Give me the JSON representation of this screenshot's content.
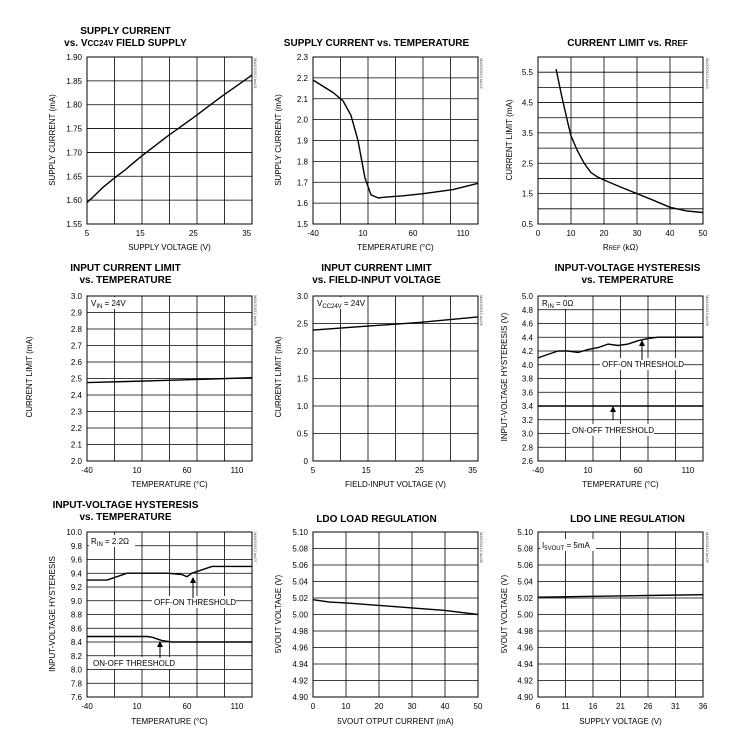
{
  "colors": {
    "line": "#000000",
    "grid": "#000000",
    "background": "#ffffff"
  },
  "chart_data": [
    {
      "type": "line",
      "title_lines": [
        "SUPPLY CURRENT",
        "vs. VCC24V FIELD SUPPLY"
      ],
      "xlabel": "SUPPLY VOLTAGE (V)",
      "ylabel": "SUPPLY CURRENT (mA)",
      "fig_id": "MAX31912 toc01",
      "xlim": [
        5,
        36
      ],
      "ylim": [
        1.55,
        1.9
      ],
      "xticks": [
        "5",
        "15",
        "25",
        "35"
      ],
      "yticks": [
        "1.90",
        "1.85",
        "1.80",
        "1.75",
        "1.70",
        "1.65",
        "1.60",
        "1.55"
      ],
      "grid": true,
      "series": [
        {
          "x": [
            5,
            6,
            8,
            10,
            12,
            15,
            20,
            25,
            30,
            36
          ],
          "y": [
            1.595,
            1.605,
            1.627,
            1.645,
            1.662,
            1.69,
            1.733,
            1.773,
            1.815,
            1.862
          ]
        }
      ],
      "annotations": []
    },
    {
      "type": "line",
      "title_lines": [
        "SUPPLY CURRENT vs. TEMPERATURE"
      ],
      "xlabel": "TEMPERATURE (°C)",
      "ylabel": "SUPPLY CURRENT (mA)",
      "fig_id": "MAX31912 toc02",
      "xlim": [
        -40,
        125
      ],
      "ylim": [
        1.5,
        2.3
      ],
      "xticks": [
        "-40",
        "10",
        "60",
        "110"
      ],
      "yticks": [
        "2.3",
        "2.2",
        "2.1",
        "2.0",
        "1.9",
        "1.8",
        "1.7",
        "1.6",
        "1.5"
      ],
      "grid": true,
      "series": [
        {
          "x": [
            -40,
            -20,
            -10,
            -2,
            5,
            12,
            18,
            25,
            35,
            50,
            70,
            100,
            125
          ],
          "y": [
            2.19,
            2.13,
            2.09,
            2.02,
            1.9,
            1.72,
            1.64,
            1.625,
            1.63,
            1.635,
            1.645,
            1.665,
            1.695
          ]
        }
      ],
      "annotations": []
    },
    {
      "type": "line",
      "title_lines": [
        "CURRENT LIMIT vs. RREF"
      ],
      "xlabel": "RREF (kΩ)",
      "ylabel": "CURRENT LIMIT (mA)",
      "fig_id": "MAX31912 toc03",
      "xlim": [
        0,
        50
      ],
      "ylim": [
        0.5,
        6
      ],
      "xticks": [
        "0",
        "10",
        "20",
        "30",
        "40",
        "50"
      ],
      "yticks": [
        "5.5",
        "4.5",
        "3.5",
        "2.5",
        "1.5",
        "0.5"
      ],
      "grid": true,
      "series": [
        {
          "x": [
            5.5,
            7,
            9,
            10,
            12,
            14,
            16,
            18,
            20,
            25,
            30,
            35,
            40,
            45,
            50
          ],
          "y": [
            5.6,
            4.8,
            3.85,
            3.4,
            2.9,
            2.5,
            2.2,
            2.05,
            1.95,
            1.72,
            1.5,
            1.28,
            1.05,
            0.93,
            0.88
          ]
        }
      ],
      "annotations": []
    },
    {
      "type": "line",
      "title_lines": [
        "INPUT CURRENT LIMIT",
        "vs. TEMPERATURE"
      ],
      "xlabel": "TEMPERATURE (°C)",
      "ylabel": "CURRENT LIMIT (mA)",
      "fig_id": "MAX31912 toc04",
      "xlim": [
        -40,
        125
      ],
      "ylim": [
        2.0,
        3.0
      ],
      "xticks": [
        "-40",
        "10",
        "60",
        "110"
      ],
      "yticks": [
        "3.0",
        "2.9",
        "2.8",
        "2.7",
        "2.6",
        "2.5",
        "2.4",
        "2.3",
        "2.2",
        "2.1",
        "2.0"
      ],
      "grid": true,
      "series": [
        {
          "x": [
            -40,
            0,
            50,
            100,
            125
          ],
          "y": [
            2.475,
            2.482,
            2.49,
            2.5,
            2.505
          ]
        }
      ],
      "annotations": [
        {
          "text": "VIN = 24V",
          "at": "top-left",
          "arrow": null
        }
      ]
    },
    {
      "type": "line",
      "title_lines": [
        "INPUT CURRENT LIMIT",
        "vs. FIELD-INPUT VOLTAGE"
      ],
      "xlabel": "FIELD-INPUT VOLTAGE (V)",
      "ylabel": "CURRENT LIMIT (mA)",
      "fig_id": "MAX31912 toc05",
      "xlim": [
        5,
        36
      ],
      "ylim": [
        0,
        3.0
      ],
      "xticks": [
        "5",
        "15",
        "25",
        "35"
      ],
      "yticks": [
        "3.0",
        "2.5",
        "2.0",
        "1.5",
        "1.0",
        "0.5",
        "0"
      ],
      "grid": true,
      "series": [
        {
          "x": [
            5,
            15,
            25,
            36
          ],
          "y": [
            2.38,
            2.45,
            2.52,
            2.62
          ]
        }
      ],
      "annotations": [
        {
          "text": "VCC24V = 24V",
          "at": "top-left",
          "arrow": null
        }
      ]
    },
    {
      "type": "line",
      "title_lines": [
        "INPUT-VOLTAGE HYSTERESIS",
        "vs. TEMPERATURE"
      ],
      "xlabel": "TEMPERATURE (°C)",
      "ylabel": "INPUT-VOLTAGE HYSTERESIS (V)",
      "fig_id": "MAX31912 toc06",
      "xlim": [
        -40,
        125
      ],
      "ylim": [
        2.6,
        5.0
      ],
      "xticks": [
        "-40",
        "10",
        "60",
        "110"
      ],
      "yticks": [
        "5.0",
        "4.8",
        "4.6",
        "4.4",
        "4.2",
        "4.0",
        "3.8",
        "3.6",
        "3.4",
        "3.2",
        "3.0",
        "2.8",
        "2.6"
      ],
      "grid": true,
      "series": [
        {
          "x": [
            -40,
            -30,
            -20,
            -10,
            0,
            10,
            20,
            30,
            40,
            50,
            60,
            70,
            80,
            100,
            125
          ],
          "y": [
            4.1,
            4.15,
            4.2,
            4.2,
            4.18,
            4.22,
            4.25,
            4.3,
            4.28,
            4.3,
            4.35,
            4.38,
            4.4,
            4.4,
            4.4
          ]
        },
        {
          "x": [
            -40,
            0,
            50,
            100,
            125
          ],
          "y": [
            3.4,
            3.4,
            3.4,
            3.4,
            3.4
          ]
        }
      ],
      "annotations": [
        {
          "text": "RIN = 0Ω",
          "at": "top-left",
          "arrow": null
        },
        {
          "text": "OFF-ON THRESHOLD",
          "at": "upper",
          "arrow": "up"
        },
        {
          "text": "ON-OFF THRESHOLD",
          "at": "middle",
          "arrow": "up"
        }
      ]
    },
    {
      "type": "line",
      "title_lines": [
        "INPUT-VOLTAGE HYSTERESIS",
        "vs. TEMPERATURE"
      ],
      "xlabel": "TEMPERATURE (°C)",
      "ylabel": "INPUT-VOLTAGE HYSTERESIS",
      "fig_id": "MAX31912 toc07",
      "xlim": [
        -40,
        125
      ],
      "ylim": [
        7.6,
        10.0
      ],
      "xticks": [
        "-40",
        "10",
        "60",
        "110"
      ],
      "yticks": [
        "10.0",
        "9.8",
        "9.6",
        "9.4",
        "9.2",
        "9.0",
        "8.8",
        "8.6",
        "8.4",
        "8.2",
        "8.0",
        "7.8",
        "7.6"
      ],
      "grid": true,
      "series": [
        {
          "x": [
            -40,
            -20,
            -10,
            0,
            20,
            40,
            55,
            60,
            65,
            75,
            85,
            100,
            125
          ],
          "y": [
            9.3,
            9.3,
            9.35,
            9.4,
            9.4,
            9.4,
            9.38,
            9.35,
            9.4,
            9.45,
            9.5,
            9.5,
            9.5
          ]
        },
        {
          "x": [
            -40,
            0,
            20,
            25,
            35,
            45,
            60,
            100,
            125
          ],
          "y": [
            8.48,
            8.48,
            8.48,
            8.47,
            8.42,
            8.4,
            8.4,
            8.4,
            8.4
          ]
        }
      ],
      "annotations": [
        {
          "text": "RIN = 2.2Ω",
          "at": "top-left",
          "arrow": null
        },
        {
          "text": "OFF-ON THRESHOLD",
          "at": "upper",
          "arrow": "up"
        },
        {
          "text": "ON-OFF THRESHOLD",
          "at": "lower",
          "arrow": "up"
        }
      ]
    },
    {
      "type": "line",
      "title_lines": [
        "LDO LOAD REGULATION"
      ],
      "xlabel": "5VOUT OTPUT CURRENT (mA)",
      "ylabel": "5VOUT VOLTAGE (V)",
      "fig_id": "MAX31912 toc08",
      "xlim": [
        0,
        50
      ],
      "ylim": [
        4.9,
        5.1
      ],
      "xticks": [
        "0",
        "10",
        "20",
        "30",
        "40",
        "50"
      ],
      "yticks": [
        "5.10",
        "5.08",
        "5.06",
        "5.04",
        "5.02",
        "5.00",
        "4.98",
        "4.96",
        "4.94",
        "4.92",
        "4.90"
      ],
      "grid": true,
      "series": [
        {
          "x": [
            0,
            5,
            10,
            20,
            30,
            40,
            50
          ],
          "y": [
            5.018,
            5.015,
            5.014,
            5.011,
            5.008,
            5.005,
            5.0
          ]
        }
      ],
      "annotations": []
    },
    {
      "type": "line",
      "title_lines": [
        "LDO LINE REGULATION"
      ],
      "xlabel": "SUPPLY VOLTAGE (V)",
      "ylabel": "5VOUT VOLTAGE (V)",
      "fig_id": "MAX31912 toc09",
      "xlim": [
        6,
        36
      ],
      "ylim": [
        4.9,
        5.1
      ],
      "xticks": [
        "6",
        "11",
        "16",
        "21",
        "26",
        "31",
        "36"
      ],
      "yticks": [
        "5.10",
        "5.08",
        "5.06",
        "5.04",
        "5.02",
        "5.00",
        "4.98",
        "4.96",
        "4.94",
        "4.92",
        "4.90"
      ],
      "grid": true,
      "series": [
        {
          "x": [
            6,
            16,
            26,
            36
          ],
          "y": [
            5.021,
            5.022,
            5.023,
            5.024
          ]
        }
      ],
      "annotations": [
        {
          "text": "I5VOUT = 5mA",
          "at": "top-left",
          "arrow": null
        }
      ]
    }
  ]
}
